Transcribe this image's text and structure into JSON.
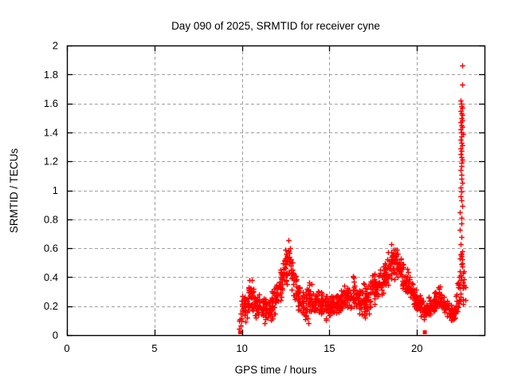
{
  "chart_data": {
    "type": "scatter",
    "title": "Day 090 of 2025, SRMTID for receiver cyne",
    "xlabel": "GPS time / hours",
    "ylabel": "SRMTID / TECUs",
    "xlim": [
      0,
      23.86
    ],
    "ylim": [
      0,
      2
    ],
    "xticks": {
      "values": [
        0,
        5,
        10,
        15,
        20
      ],
      "labels": [
        "0",
        "5",
        "10",
        "15",
        "20"
      ]
    },
    "yticks": {
      "values": [
        0,
        0.2,
        0.4,
        0.6,
        0.8,
        1,
        1.2,
        1.4,
        1.6,
        1.8,
        2
      ],
      "labels": [
        "0",
        "0.2",
        "0.4",
        "0.6",
        "0.8",
        "1",
        "1.2",
        "1.4",
        "1.6",
        "1.8",
        "2"
      ]
    },
    "grid": true,
    "legend": "none",
    "marker": "plus",
    "colors": {
      "data": "#ff0000",
      "grid": "#a0a0a0",
      "frame": "#000000",
      "background": "#ffffff"
    },
    "series_name": "SRMTID",
    "data_summary": {
      "data_start_hour": 9.9,
      "data_end_hour": 22.8,
      "quiet_before_hour": 9.9,
      "typical_band": [
        0.1,
        0.35
      ],
      "peaks": [
        {
          "hour": 12.7,
          "value": 0.7
        },
        {
          "hour": 18.8,
          "value": 0.67
        },
        {
          "hour": 22.6,
          "value": 1.86
        }
      ]
    },
    "scatter": {
      "envelope": [
        [
          9.85,
          0.02,
          0.18,
          40
        ],
        [
          10.0,
          0.05,
          0.28,
          90
        ],
        [
          10.25,
          0.08,
          0.31,
          90
        ],
        [
          10.5,
          0.12,
          0.42,
          95
        ],
        [
          10.7,
          0.1,
          0.36,
          90
        ],
        [
          11.0,
          0.1,
          0.3,
          90
        ],
        [
          11.35,
          0.07,
          0.27,
          90
        ],
        [
          11.7,
          0.1,
          0.32,
          90
        ],
        [
          12.0,
          0.15,
          0.38,
          95
        ],
        [
          12.25,
          0.22,
          0.5,
          100
        ],
        [
          12.5,
          0.28,
          0.63,
          100
        ],
        [
          12.65,
          0.33,
          0.7,
          100
        ],
        [
          12.8,
          0.28,
          0.6,
          95
        ],
        [
          13.0,
          0.22,
          0.48,
          90
        ],
        [
          13.25,
          0.15,
          0.38,
          90
        ],
        [
          13.5,
          0.08,
          0.32,
          90
        ],
        [
          13.85,
          0.06,
          0.42,
          90
        ],
        [
          14.1,
          0.12,
          0.31,
          90
        ],
        [
          14.4,
          0.13,
          0.33,
          90
        ],
        [
          14.7,
          0.12,
          0.3,
          90
        ],
        [
          15.0,
          0.07,
          0.3,
          90
        ],
        [
          15.3,
          0.12,
          0.3,
          90
        ],
        [
          15.6,
          0.13,
          0.32,
          90
        ],
        [
          15.9,
          0.15,
          0.36,
          90
        ],
        [
          16.2,
          0.18,
          0.45,
          90
        ],
        [
          16.5,
          0.15,
          0.38,
          90
        ],
        [
          16.8,
          0.13,
          0.36,
          90
        ],
        [
          17.1,
          0.07,
          0.38,
          90
        ],
        [
          17.4,
          0.18,
          0.44,
          92
        ],
        [
          17.7,
          0.22,
          0.46,
          92
        ],
        [
          18.0,
          0.25,
          0.5,
          95
        ],
        [
          18.3,
          0.3,
          0.58,
          98
        ],
        [
          18.55,
          0.35,
          0.66,
          100
        ],
        [
          18.8,
          0.38,
          0.67,
          100
        ],
        [
          19.0,
          0.32,
          0.62,
          95
        ],
        [
          19.2,
          0.28,
          0.52,
          92
        ],
        [
          19.5,
          0.22,
          0.46,
          90
        ],
        [
          19.8,
          0.18,
          0.38,
          90
        ],
        [
          20.1,
          0.13,
          0.3,
          88
        ],
        [
          20.4,
          0.1,
          0.26,
          86
        ],
        [
          20.7,
          0.13,
          0.28,
          86
        ],
        [
          21.0,
          0.16,
          0.32,
          88
        ],
        [
          21.3,
          0.18,
          0.36,
          88
        ],
        [
          21.6,
          0.14,
          0.3,
          86
        ],
        [
          21.9,
          0.09,
          0.24,
          84
        ],
        [
          22.1,
          0.08,
          0.22,
          84
        ],
        [
          22.3,
          0.14,
          0.34,
          88
        ],
        [
          22.45,
          0.18,
          0.55,
          95
        ],
        [
          22.55,
          0.2,
          1.05,
          110
        ],
        [
          22.65,
          0.18,
          0.6,
          80
        ],
        [
          22.78,
          0.22,
          0.34,
          50
        ]
      ],
      "spike_points": [
        [
          22.6,
          1.86
        ],
        [
          22.59,
          1.73
        ],
        [
          22.51,
          1.62
        ],
        [
          22.56,
          1.6
        ],
        [
          22.53,
          1.58
        ],
        [
          22.58,
          1.57
        ],
        [
          22.5,
          1.55
        ],
        [
          22.55,
          1.53
        ],
        [
          22.6,
          1.52
        ],
        [
          22.52,
          1.5
        ],
        [
          22.57,
          1.48
        ],
        [
          22.49,
          1.47
        ],
        [
          22.54,
          1.45
        ],
        [
          22.59,
          1.44
        ],
        [
          22.51,
          1.42
        ],
        [
          22.56,
          1.4
        ],
        [
          22.61,
          1.39
        ],
        [
          22.53,
          1.37
        ],
        [
          22.48,
          1.35
        ],
        [
          22.55,
          1.33
        ],
        [
          22.58,
          1.31
        ],
        [
          22.51,
          1.29
        ],
        [
          22.56,
          1.27
        ],
        [
          22.49,
          1.25
        ],
        [
          22.54,
          1.23
        ],
        [
          22.59,
          1.21
        ],
        [
          22.52,
          1.19
        ],
        [
          22.56,
          1.17
        ],
        [
          22.5,
          1.14
        ],
        [
          22.55,
          1.11
        ],
        [
          22.53,
          1.08
        ],
        [
          22.57,
          1.05
        ],
        [
          22.51,
          1.02
        ],
        [
          22.55,
          0.99
        ],
        [
          22.48,
          0.96
        ],
        [
          22.53,
          0.93
        ],
        [
          22.57,
          0.89
        ],
        [
          22.46,
          0.85
        ],
        [
          22.52,
          0.81
        ],
        [
          22.56,
          0.77
        ],
        [
          22.43,
          0.73
        ],
        [
          22.54,
          0.68
        ],
        [
          22.49,
          0.63
        ],
        [
          22.58,
          0.58
        ],
        [
          22.45,
          0.53
        ]
      ],
      "zero_markers": [
        [
          9.9,
          0.02
        ],
        [
          20.45,
          0.02
        ]
      ]
    }
  }
}
